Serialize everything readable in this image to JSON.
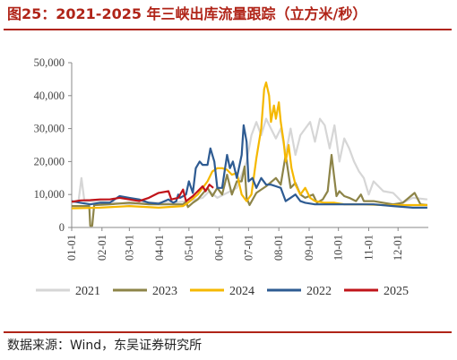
{
  "header": {
    "title": "图25：2021-2025 年三峡出库流量跟踪（立方米/秒）"
  },
  "footer": {
    "source": "数据来源：Wind，东吴证券研究所"
  },
  "colors": {
    "title": "#b02418",
    "rule": "#b02418",
    "axis": "#888888"
  },
  "chart_data": {
    "type": "line",
    "title": "2021-2025 年三峡出库流量跟踪（立方米/秒）",
    "xlabel": "",
    "ylabel": "",
    "x_tick_labels": [
      "01-01",
      "02-01",
      "03-01",
      "04-01",
      "05-01",
      "06-01",
      "07-01",
      "08-01",
      "09-01",
      "10-01",
      "11-01",
      "12-01"
    ],
    "y_tick_labels": [
      "0",
      "10,000",
      "20,000",
      "30,000",
      "40,000",
      "50,000"
    ],
    "ylim": [
      0,
      50000
    ],
    "xlim_day_of_year": [
      1,
      366
    ],
    "grid": false,
    "legend_position": "bottom",
    "x_unit": "day-of-year",
    "series": [
      {
        "name": "2021",
        "color": "#d6d6d6",
        "points": [
          [
            1,
            7500
          ],
          [
            8,
            8000
          ],
          [
            11,
            15000
          ],
          [
            14,
            8000
          ],
          [
            30,
            8000
          ],
          [
            45,
            7500
          ],
          [
            60,
            7000
          ],
          [
            75,
            7500
          ],
          [
            90,
            7500
          ],
          [
            105,
            7500
          ],
          [
            120,
            8000
          ],
          [
            135,
            9000
          ],
          [
            142,
            11000
          ],
          [
            150,
            9000
          ],
          [
            160,
            10500
          ],
          [
            170,
            12000
          ],
          [
            180,
            20000
          ],
          [
            185,
            28000
          ],
          [
            190,
            32000
          ],
          [
            195,
            28000
          ],
          [
            200,
            33000
          ],
          [
            205,
            30000
          ],
          [
            210,
            27000
          ],
          [
            215,
            30000
          ],
          [
            220,
            22000
          ],
          [
            225,
            30000
          ],
          [
            230,
            22000
          ],
          [
            235,
            28000
          ],
          [
            240,
            30000
          ],
          [
            245,
            32000
          ],
          [
            250,
            26000
          ],
          [
            255,
            33000
          ],
          [
            260,
            31000
          ],
          [
            265,
            24000
          ],
          [
            270,
            31000
          ],
          [
            275,
            20000
          ],
          [
            280,
            27000
          ],
          [
            285,
            24000
          ],
          [
            290,
            20000
          ],
          [
            295,
            17000
          ],
          [
            300,
            15000
          ],
          [
            305,
            10000
          ],
          [
            310,
            14000
          ],
          [
            320,
            11000
          ],
          [
            330,
            10500
          ],
          [
            340,
            7500
          ],
          [
            350,
            9000
          ],
          [
            365,
            8500
          ]
        ]
      },
      {
        "name": "2023",
        "color": "#8d8448",
        "points": [
          [
            1,
            6500
          ],
          [
            15,
            6500
          ],
          [
            19,
            6500
          ],
          [
            20,
            500
          ],
          [
            22,
            500
          ],
          [
            24,
            6800
          ],
          [
            40,
            7000
          ],
          [
            60,
            7500
          ],
          [
            80,
            7000
          ],
          [
            100,
            7000
          ],
          [
            115,
            7000
          ],
          [
            118,
            7800
          ],
          [
            120,
            6200
          ],
          [
            125,
            7500
          ],
          [
            130,
            8500
          ],
          [
            140,
            12000
          ],
          [
            145,
            9500
          ],
          [
            150,
            12000
          ],
          [
            155,
            10000
          ],
          [
            160,
            16000
          ],
          [
            165,
            10000
          ],
          [
            170,
            14000
          ],
          [
            175,
            14000
          ],
          [
            178,
            18500
          ],
          [
            180,
            9000
          ],
          [
            183,
            6800
          ],
          [
            190,
            10500
          ],
          [
            200,
            12500
          ],
          [
            210,
            15000
          ],
          [
            215,
            13000
          ],
          [
            220,
            22000
          ],
          [
            225,
            12000
          ],
          [
            230,
            13500
          ],
          [
            235,
            10000
          ],
          [
            240,
            9000
          ],
          [
            248,
            10000
          ],
          [
            252,
            7500
          ],
          [
            258,
            8500
          ],
          [
            263,
            11000
          ],
          [
            267,
            22000
          ],
          [
            272,
            9500
          ],
          [
            275,
            11000
          ],
          [
            280,
            9500
          ],
          [
            285,
            9000
          ],
          [
            292,
            8000
          ],
          [
            297,
            10000
          ],
          [
            300,
            8000
          ],
          [
            310,
            8000
          ],
          [
            320,
            7500
          ],
          [
            330,
            7000
          ],
          [
            340,
            7500
          ],
          [
            352,
            10500
          ],
          [
            358,
            7000
          ],
          [
            365,
            6800
          ]
        ]
      },
      {
        "name": "2024",
        "color": "#f5b800",
        "points": [
          [
            1,
            5800
          ],
          [
            30,
            6000
          ],
          [
            60,
            6500
          ],
          [
            90,
            6000
          ],
          [
            115,
            6500
          ],
          [
            120,
            7500
          ],
          [
            130,
            10000
          ],
          [
            140,
            14000
          ],
          [
            145,
            17000
          ],
          [
            150,
            18000
          ],
          [
            155,
            18000
          ],
          [
            160,
            17500
          ],
          [
            165,
            16000
          ],
          [
            170,
            16500
          ],
          [
            175,
            10000
          ],
          [
            180,
            8000
          ],
          [
            185,
            10000
          ],
          [
            190,
            21000
          ],
          [
            195,
            30000
          ],
          [
            198,
            42000
          ],
          [
            200,
            44000
          ],
          [
            203,
            40000
          ],
          [
            205,
            32000
          ],
          [
            208,
            37000
          ],
          [
            210,
            33000
          ],
          [
            213,
            38000
          ],
          [
            215,
            32000
          ],
          [
            218,
            26000
          ],
          [
            220,
            20000
          ],
          [
            223,
            25000
          ],
          [
            226,
            18000
          ],
          [
            230,
            13000
          ],
          [
            235,
            10000
          ],
          [
            240,
            12000
          ],
          [
            245,
            9000
          ],
          [
            250,
            8000
          ],
          [
            260,
            7500
          ],
          [
            270,
            7500
          ],
          [
            280,
            7000
          ],
          [
            300,
            7000
          ],
          [
            320,
            6800
          ],
          [
            340,
            6800
          ],
          [
            365,
            6800
          ]
        ]
      },
      {
        "name": "2022",
        "color": "#2e5b92",
        "points": [
          [
            1,
            8000
          ],
          [
            10,
            7500
          ],
          [
            20,
            7000
          ],
          [
            30,
            7500
          ],
          [
            40,
            7500
          ],
          [
            50,
            9500
          ],
          [
            60,
            9000
          ],
          [
            70,
            8500
          ],
          [
            80,
            7500
          ],
          [
            90,
            7200
          ],
          [
            100,
            8500
          ],
          [
            105,
            7500
          ],
          [
            108,
            8000
          ],
          [
            110,
            10000
          ],
          [
            112,
            9000
          ],
          [
            118,
            10000
          ],
          [
            121,
            14000
          ],
          [
            125,
            10500
          ],
          [
            128,
            18000
          ],
          [
            132,
            20000
          ],
          [
            135,
            19000
          ],
          [
            140,
            19000
          ],
          [
            143,
            24000
          ],
          [
            147,
            20000
          ],
          [
            150,
            12000
          ],
          [
            155,
            12000
          ],
          [
            160,
            22000
          ],
          [
            163,
            18000
          ],
          [
            166,
            20000
          ],
          [
            170,
            15000
          ],
          [
            175,
            22000
          ],
          [
            177,
            31000
          ],
          [
            180,
            26000
          ],
          [
            182,
            14000
          ],
          [
            186,
            15000
          ],
          [
            190,
            12000
          ],
          [
            195,
            15000
          ],
          [
            200,
            13000
          ],
          [
            205,
            13000
          ],
          [
            210,
            12500
          ],
          [
            215,
            12000
          ],
          [
            220,
            8000
          ],
          [
            225,
            9000
          ],
          [
            230,
            10000
          ],
          [
            235,
            8000
          ],
          [
            240,
            7500
          ],
          [
            250,
            7000
          ],
          [
            270,
            7000
          ],
          [
            290,
            7000
          ],
          [
            310,
            7000
          ],
          [
            330,
            6500
          ],
          [
            350,
            6000
          ],
          [
            365,
            6000
          ]
        ]
      },
      {
        "name": "2025",
        "color": "#c0141a",
        "points": [
          [
            1,
            7800
          ],
          [
            10,
            8200
          ],
          [
            20,
            8300
          ],
          [
            30,
            8500
          ],
          [
            40,
            8500
          ],
          [
            50,
            9000
          ],
          [
            60,
            8500
          ],
          [
            70,
            8000
          ],
          [
            80,
            9000
          ],
          [
            90,
            10500
          ],
          [
            100,
            11000
          ],
          [
            103,
            8500
          ],
          [
            110,
            9000
          ],
          [
            115,
            11500
          ],
          [
            118,
            8000
          ],
          [
            125,
            9500
          ],
          [
            130,
            11000
          ],
          [
            135,
            12500
          ],
          [
            138,
            11000
          ],
          [
            142,
            13000
          ],
          [
            146,
            12000
          ]
        ]
      }
    ]
  }
}
